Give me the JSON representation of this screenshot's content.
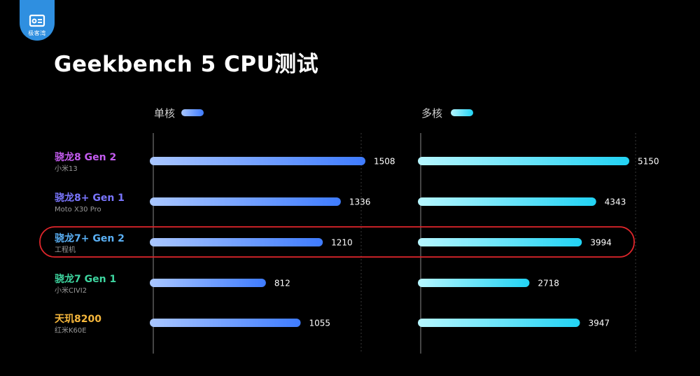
{
  "logo": {
    "text": "极客湾"
  },
  "title": "Geekbench 5 CPU测试",
  "colors": {
    "background": "#000000",
    "single_start": "#a9c6ff",
    "single_end": "#3f7cff",
    "multi_start": "#b6f6ff",
    "multi_end": "#22d3f4",
    "highlight_outline": "#e0262b",
    "axis_line": "#5a5a5a",
    "grid_dotted": "#3a3a3a",
    "sub_label": "#9a9a9a"
  },
  "chart_data": {
    "type": "bar",
    "orientation": "horizontal",
    "categories": [
      {
        "chip": "骁龙8 Gen 2",
        "device": "小米13",
        "color": "#c45cf0"
      },
      {
        "chip": "骁龙8+ Gen 1",
        "device": "Moto X30 Pro",
        "color": "#7a76ff"
      },
      {
        "chip": "骁龙7+ Gen 2",
        "device": "工程机",
        "color": "#5ab0f5",
        "highlighted": true
      },
      {
        "chip": "骁龙7 Gen 1",
        "device": "小米CIVI2",
        "color": "#3ed6a0"
      },
      {
        "chip": "天玑8200",
        "device": "红米K60E",
        "color": "#f6b73c"
      }
    ],
    "series": [
      {
        "name": "单核",
        "values": [
          1508,
          1336,
          1210,
          812,
          1055
        ]
      },
      {
        "name": "多核",
        "values": [
          5150,
          4343,
          3994,
          2718,
          3947
        ]
      }
    ],
    "xlim_single": [
      0,
      1508
    ],
    "xlim_multi": [
      0,
      5150
    ],
    "grid": false,
    "legend": "top"
  }
}
